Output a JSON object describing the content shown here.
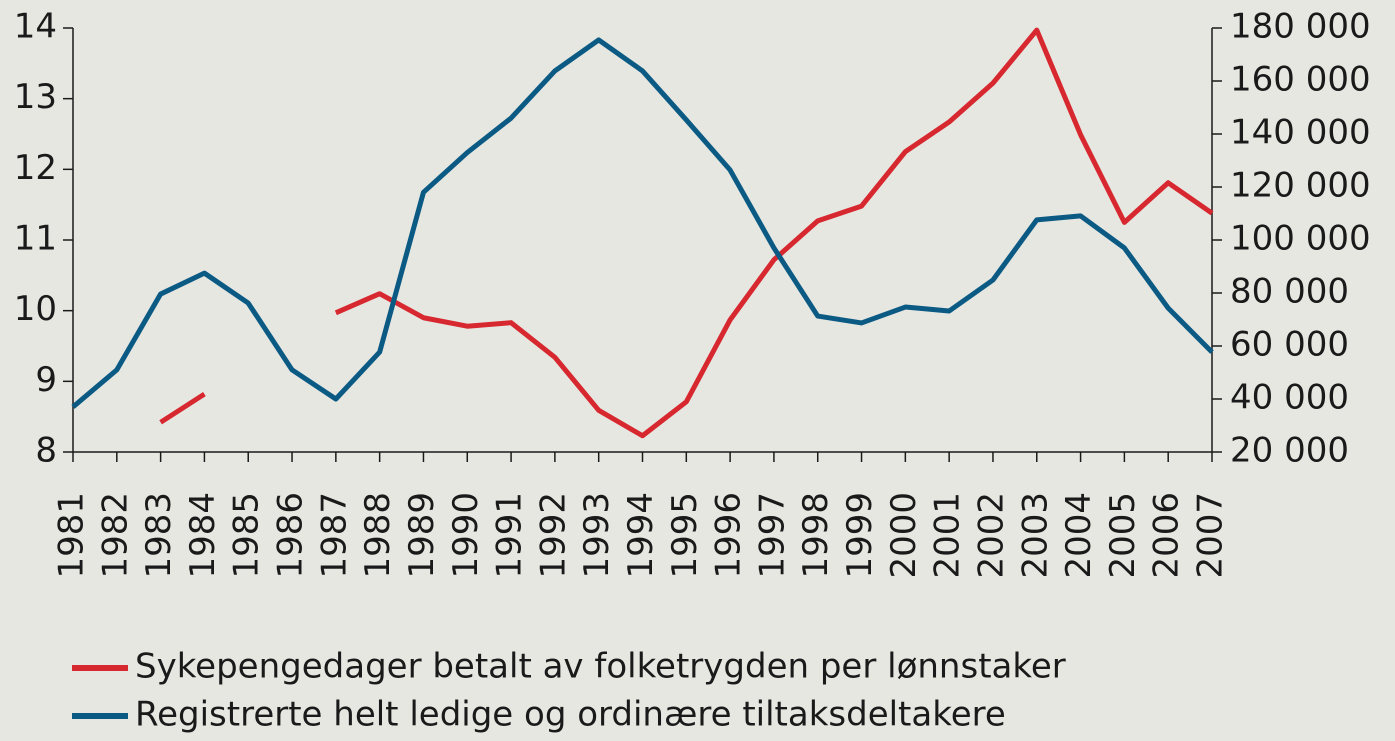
{
  "chart_data": {
    "type": "line",
    "categories": [
      "1981",
      "1982",
      "1983",
      "1984",
      "1985",
      "1986",
      "1987",
      "1988",
      "1989",
      "1990",
      "1991",
      "1992",
      "1993",
      "1994",
      "1995",
      "1996",
      "1997",
      "1998",
      "1999",
      "2000",
      "2001",
      "2002",
      "2003",
      "2004",
      "2005",
      "2006",
      "2007"
    ],
    "series": [
      {
        "name": "Sykepengedager betalt av folketrygden per lønnstaker",
        "color": "#d7282f",
        "axis": "y",
        "values": [
          null,
          null,
          8.42,
          8.82,
          null,
          null,
          9.97,
          10.24,
          9.9,
          9.78,
          9.83,
          9.34,
          8.59,
          8.23,
          8.71,
          9.87,
          10.72,
          11.27,
          11.48,
          12.25,
          12.67,
          13.22,
          13.97,
          12.49,
          11.25,
          11.81,
          11.38
        ]
      },
      {
        "name": "Registrerte helt ledige og ordinære tiltaksdeltakere",
        "color": "#0b5a84",
        "axis": "y2",
        "values": [
          37000,
          51000,
          79600,
          87500,
          76200,
          51000,
          40000,
          57700,
          118000,
          133000,
          146000,
          163800,
          175500,
          163800,
          145300,
          126400,
          97000,
          71300,
          68700,
          74700,
          73200,
          84900,
          107600,
          109100,
          97000,
          74300,
          57700
        ]
      }
    ],
    "ylim": [
      8,
      14
    ],
    "yticks": [
      8,
      9,
      10,
      11,
      12,
      13,
      14
    ],
    "y2lim": [
      20000,
      180000
    ],
    "y2ticks": [
      {
        "value": 20000,
        "label": "20 000"
      },
      {
        "value": 40000,
        "label": "40 000"
      },
      {
        "value": 60000,
        "label": "60 000"
      },
      {
        "value": 80000,
        "label": "80 000"
      },
      {
        "value": 100000,
        "label": "100 000"
      },
      {
        "value": 120000,
        "label": "120 000"
      },
      {
        "value": 140000,
        "label": "140 000"
      },
      {
        "value": 160000,
        "label": "160 000"
      },
      {
        "value": 180000,
        "label": "180 000"
      }
    ],
    "legend": "bottom-left"
  }
}
